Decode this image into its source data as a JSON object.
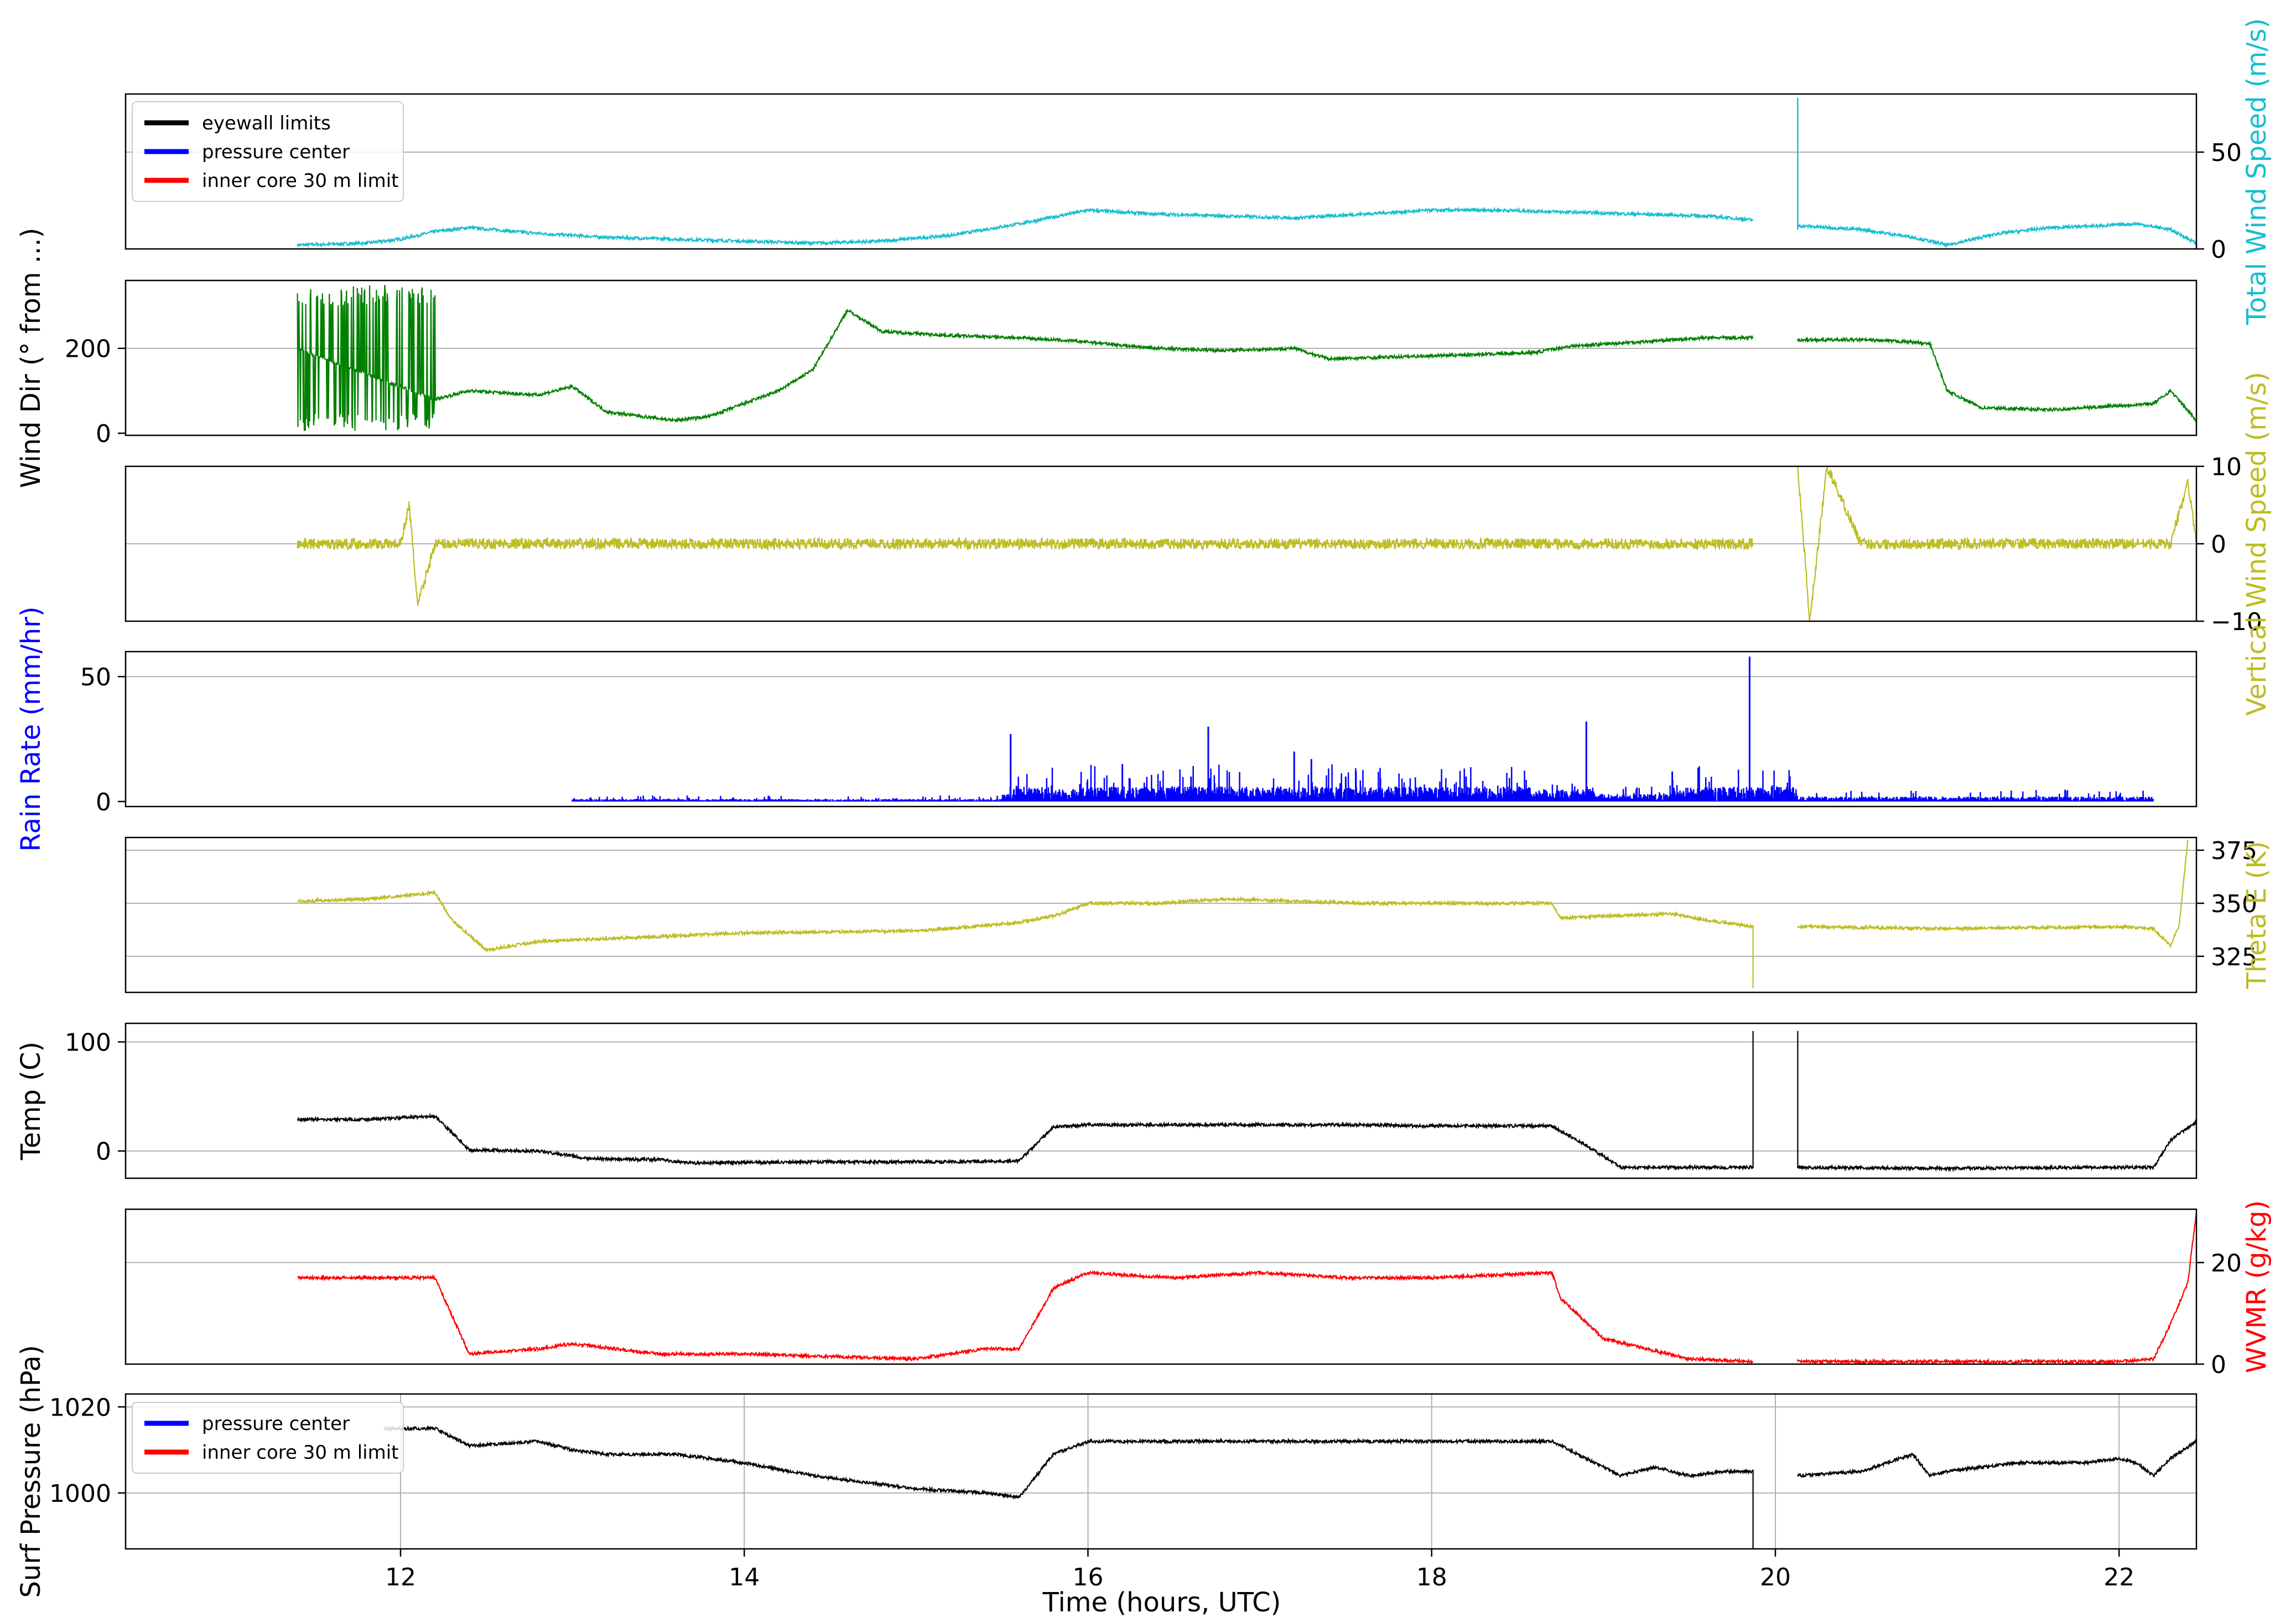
{
  "figure": {
    "xlabel": "Time (hours, UTC)",
    "xlim": [
      10.4,
      22.45
    ],
    "xticks": [
      12,
      14,
      16,
      18,
      20,
      22
    ],
    "legend_top": [
      "eyewall limits",
      "pressure center",
      "inner core 30 m limit"
    ],
    "legend_bottom": [
      "pressure center",
      "inner core 30 m limit"
    ],
    "legend_colors": [
      "#000000",
      "#0000ff",
      "#ff0000"
    ]
  },
  "chart_data": [
    {
      "type": "line",
      "key": "wind_speed",
      "title": "",
      "ylabel": "Total Wind Speed (m/s)",
      "ylabel_colored_prefix": "Total ",
      "ylabel_prefix_color": "#17becf",
      "ylabel_rest": "Wind Speed (m/s)",
      "axis_side": "right",
      "ylim": [
        0,
        80
      ],
      "yticks": [
        0,
        50
      ],
      "grid": [
        50
      ],
      "color": "#17becf",
      "x": [
        11.4,
        11.8,
        12.0,
        12.2,
        12.4,
        12.8,
        13.2,
        13.6,
        14.0,
        14.4,
        14.8,
        15.2,
        15.6,
        16.0,
        16.4,
        16.8,
        17.2,
        17.6,
        18.0,
        18.4,
        18.8,
        19.2,
        19.6,
        19.87,
        20.13,
        20.5,
        20.8,
        21.0,
        21.3,
        21.6,
        21.9,
        22.1,
        22.3,
        22.45
      ],
      "y": [
        2,
        3,
        5,
        9,
        11,
        8,
        6,
        5,
        4,
        3,
        4,
        7,
        13,
        20,
        18,
        17,
        16,
        18,
        20,
        20,
        19,
        18,
        17,
        15,
        12,
        10,
        6,
        2,
        8,
        11,
        12,
        13,
        10,
        3
      ],
      "spike": {
        "x": 20.13,
        "y": 78,
        "label": "spike to top"
      }
    },
    {
      "type": "line",
      "key": "wind_dir",
      "ylabel": "Wind Dir (° from ...)",
      "axis_side": "left",
      "ylim": [
        -5,
        360
      ],
      "yticks": [
        0,
        200
      ],
      "grid": [
        200
      ],
      "color": "#008000",
      "noisy_range": [
        11.4,
        12.2
      ],
      "x": [
        11.4,
        12.2,
        12.4,
        12.8,
        13.0,
        13.2,
        13.6,
        13.8,
        14.0,
        14.2,
        14.4,
        14.6,
        14.8,
        15.2,
        15.6,
        16.0,
        16.4,
        16.8,
        17.2,
        17.4,
        17.8,
        18.2,
        18.6,
        18.8,
        19.2,
        19.6,
        19.87,
        20.13,
        20.5,
        20.8,
        20.9,
        21.0,
        21.2,
        21.6,
        22.0,
        22.2,
        22.3,
        22.45
      ],
      "y": [
        200,
        80,
        100,
        90,
        110,
        50,
        30,
        40,
        70,
        100,
        150,
        290,
        240,
        230,
        225,
        215,
        200,
        195,
        200,
        175,
        180,
        185,
        190,
        205,
        215,
        225,
        225,
        220,
        220,
        215,
        210,
        100,
        60,
        55,
        65,
        70,
        100,
        30
      ]
    },
    {
      "type": "line",
      "key": "vertical_wind",
      "ylabel": "Vertical Wind Speed (m/s)",
      "axis_side": "right",
      "ylim": [
        -10,
        10
      ],
      "yticks": [
        -10,
        0,
        10
      ],
      "grid": [
        0
      ],
      "color": "#bcbd22",
      "x": [
        11.4,
        12.0,
        12.05,
        12.1,
        12.2,
        12.4,
        14.0,
        16.0,
        18.0,
        19.6,
        19.87,
        20.13,
        20.2,
        20.3,
        20.5,
        22.0,
        22.3,
        22.4,
        22.45
      ],
      "y": [
        0,
        0,
        5,
        -8,
        0,
        0,
        0,
        0,
        0,
        0,
        0,
        10,
        -10,
        10,
        0,
        0,
        0,
        8,
        0
      ]
    },
    {
      "type": "bar",
      "key": "rain_rate",
      "ylabel": "Rain Rate (mm/hr)",
      "axis_side": "left",
      "ylim": [
        -2,
        60
      ],
      "yticks": [
        0,
        50
      ],
      "grid": [
        50
      ],
      "color": "#0000ff",
      "x": [
        12.3,
        13.0,
        14.0,
        15.0,
        15.5,
        15.55,
        15.8,
        16.0,
        16.2,
        16.6,
        16.7,
        16.8,
        17.0,
        17.2,
        17.3,
        17.5,
        17.8,
        18.0,
        18.2,
        18.6,
        18.9,
        18.95,
        19.4,
        19.85,
        20.13,
        21.0,
        22.2
      ],
      "y": [
        0,
        1,
        1,
        1,
        3,
        27,
        5,
        8,
        15,
        10,
        30,
        8,
        7,
        20,
        17,
        10,
        8,
        7,
        10,
        5,
        32,
        3,
        12,
        58,
        2,
        2,
        1
      ]
    },
    {
      "type": "line",
      "key": "theta_e",
      "ylabel": "Theta E (K)",
      "axis_side": "right",
      "ylim": [
        308,
        381
      ],
      "yticks": [
        325,
        350,
        375
      ],
      "grid": [
        325,
        350,
        375
      ],
      "color": "#bcbd22",
      "x": [
        11.4,
        11.8,
        12.2,
        12.3,
        12.5,
        12.8,
        13.4,
        14.0,
        15.0,
        15.2,
        15.6,
        15.8,
        16.0,
        16.4,
        16.8,
        17.2,
        17.6,
        18.0,
        18.4,
        18.7,
        18.75,
        19.0,
        19.4,
        19.6,
        19.87,
        19.87,
        20.13,
        21.0,
        22.0,
        22.2,
        22.3,
        22.35,
        22.4
      ],
      "y": [
        351,
        352,
        355,
        342,
        328,
        332,
        334,
        336,
        337,
        338,
        341,
        344,
        350,
        350,
        352,
        351,
        350,
        350,
        350,
        350,
        343,
        344,
        345,
        342,
        339,
        310,
        339,
        338,
        339,
        338,
        330,
        340,
        380
      ]
    },
    {
      "type": "line",
      "key": "temp",
      "ylabel": "Temp (C)",
      "axis_side": "left",
      "ylim": [
        -25,
        117
      ],
      "yticks": [
        0,
        100
      ],
      "grid": [
        0,
        100
      ],
      "color": "#000000",
      "x": [
        11.4,
        11.8,
        12.2,
        12.4,
        12.8,
        13.1,
        13.5,
        13.7,
        14.5,
        15.2,
        15.6,
        15.8,
        16.0,
        16.5,
        17.0,
        17.5,
        18.0,
        18.5,
        18.7,
        18.9,
        19.1,
        19.5,
        19.87,
        19.87,
        20.13,
        20.13,
        21.0,
        22.0,
        22.2,
        22.3,
        22.45
      ],
      "y": [
        29,
        29,
        32,
        1,
        0,
        -7,
        -8,
        -11,
        -10,
        -10,
        -9,
        22,
        24,
        24,
        24,
        24,
        23,
        23,
        23,
        5,
        -15,
        -15,
        -15,
        110,
        110,
        -15,
        -16,
        -15,
        -15,
        10,
        27
      ]
    },
    {
      "type": "line",
      "key": "wvmr",
      "ylabel": "WVMR (g/kg)",
      "ylabel_colored_prefix": "WVMR ",
      "ylabel_prefix_color": "#ff0000",
      "ylabel_rest": "(g/kg)",
      "axis_side": "right",
      "ylim": [
        0,
        30.5
      ],
      "yticks": [
        0,
        20
      ],
      "grid": [
        20
      ],
      "color": "#ff0000",
      "x": [
        11.4,
        11.8,
        12.2,
        12.4,
        12.8,
        13.0,
        13.5,
        14.0,
        15.0,
        15.4,
        15.6,
        15.8,
        16.0,
        16.5,
        17.0,
        17.5,
        18.0,
        18.7,
        18.75,
        19.0,
        19.5,
        19.87,
        20.13,
        21.0,
        22.0,
        22.2,
        22.3,
        22.4,
        22.45
      ],
      "y": [
        17,
        17,
        17,
        2,
        3,
        4,
        2,
        2,
        1,
        3,
        3,
        15,
        18,
        17,
        18,
        17,
        17,
        18,
        13,
        5,
        1,
        0.5,
        0.5,
        0.5,
        0.5,
        1,
        8,
        16,
        30
      ]
    },
    {
      "type": "line",
      "key": "surf_pressure",
      "ylabel": "Surf Pressure (hPa)",
      "axis_side": "left",
      "ylim": [
        987,
        1023
      ],
      "yticks": [
        1000,
        1020
      ],
      "grid": [
        1000,
        1020
      ],
      "vgrid": true,
      "color": "#000000",
      "x": [
        11.9,
        12.2,
        12.4,
        12.8,
        13.0,
        13.2,
        13.6,
        14.0,
        14.4,
        15.0,
        15.4,
        15.6,
        15.8,
        16.0,
        16.5,
        17.0,
        17.5,
        18.0,
        18.7,
        18.9,
        19.1,
        19.3,
        19.5,
        19.7,
        19.87,
        19.87,
        20.13,
        20.5,
        20.8,
        20.9,
        21.0,
        21.4,
        21.8,
        22.0,
        22.1,
        22.2,
        22.3,
        22.45
      ],
      "y": [
        1015,
        1015,
        1011,
        1012,
        1010,
        1009,
        1009,
        1007,
        1004,
        1001,
        1000,
        999,
        1009,
        1012,
        1012,
        1012,
        1012,
        1012,
        1012,
        1008,
        1004,
        1006,
        1004,
        1005,
        1005,
        987,
        1004,
        1005,
        1009,
        1004,
        1005,
        1007,
        1007,
        1008,
        1007,
        1004,
        1008,
        1012
      ]
    }
  ]
}
